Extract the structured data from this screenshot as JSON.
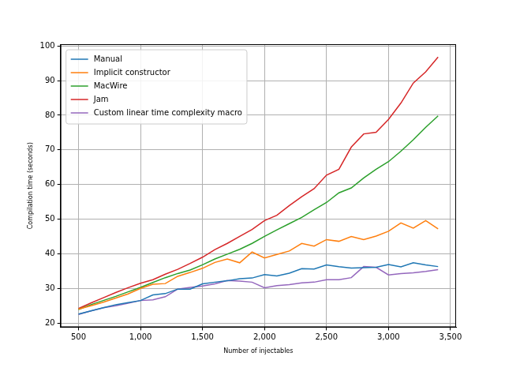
{
  "chart_data": {
    "type": "line",
    "x_label": "Number of injectables",
    "y_label": "Compilation time (seconds)",
    "x": [
      500,
      600,
      700,
      800,
      900,
      1000,
      1100,
      1200,
      1300,
      1400,
      1500,
      1600,
      1700,
      1800,
      1900,
      2000,
      2100,
      2200,
      2300,
      2400,
      2500,
      2600,
      2700,
      2800,
      2900,
      3000,
      3100,
      3200,
      3300,
      3400
    ],
    "series": [
      {
        "name": "Manual",
        "color": "#1f77b4",
        "values": [
          22.6,
          23.5,
          24.4,
          25.3,
          25.9,
          26.5,
          28.1,
          28.5,
          29.8,
          29.8,
          31.3,
          31.8,
          32.2,
          32.8,
          33.0,
          34.0,
          33.6,
          34.4,
          35.7,
          35.6,
          36.8,
          36.3,
          35.9,
          36.0,
          36.1,
          36.9,
          36.2,
          37.4,
          36.8,
          36.3
        ]
      },
      {
        "name": "Implicit constructor",
        "color": "#ff7f0e",
        "values": [
          24.0,
          25.0,
          26.0,
          27.2,
          28.4,
          30.0,
          31.2,
          31.4,
          33.5,
          34.6,
          35.8,
          37.5,
          38.5,
          37.4,
          40.5,
          38.8,
          39.8,
          40.8,
          43.0,
          42.2,
          44.1,
          43.6,
          45.0,
          44.1,
          45.1,
          46.5,
          48.9,
          47.4,
          49.6,
          47.2
        ]
      },
      {
        "name": "MacWire",
        "color": "#2ca02c",
        "values": [
          23.9,
          25.3,
          26.5,
          27.7,
          29.0,
          30.3,
          31.7,
          33.1,
          34.3,
          35.3,
          36.8,
          38.5,
          39.9,
          41.3,
          43.0,
          45.0,
          46.9,
          48.7,
          50.5,
          52.7,
          54.8,
          57.6,
          59.0,
          61.9,
          64.4,
          66.6,
          69.6,
          72.9,
          76.5,
          79.8
        ]
      },
      {
        "name": "Jam",
        "color": "#d62728",
        "values": [
          24.2,
          25.8,
          27.3,
          28.8,
          30.2,
          31.5,
          32.5,
          34.1,
          35.5,
          37.2,
          39.0,
          41.2,
          43.0,
          45.0,
          47.0,
          49.6,
          51.1,
          53.9,
          56.5,
          58.8,
          62.7,
          64.4,
          70.8,
          74.6,
          75.1,
          78.8,
          83.5,
          89.3,
          92.5,
          96.8
        ]
      },
      {
        "name": "Custom linear time complexity macro",
        "color": "#9467bd",
        "values": [
          22.5,
          23.5,
          24.4,
          25.0,
          25.7,
          26.5,
          26.7,
          27.6,
          29.8,
          30.3,
          30.7,
          31.3,
          32.3,
          32.1,
          31.8,
          30.2,
          30.8,
          31.1,
          31.6,
          31.8,
          32.5,
          32.5,
          33.1,
          36.3,
          36.1,
          33.9,
          34.3,
          34.5,
          34.9,
          35.4
        ]
      }
    ],
    "xlim": [
      355,
      3545
    ],
    "xticks": [
      500,
      1000,
      1500,
      2000,
      2500,
      3000,
      3500
    ],
    "ylim": [
      18.8,
      100.5
    ],
    "yticks": [
      20,
      30,
      40,
      50,
      60,
      70,
      80,
      90,
      100
    ],
    "grid": true,
    "legend": "upper left"
  }
}
